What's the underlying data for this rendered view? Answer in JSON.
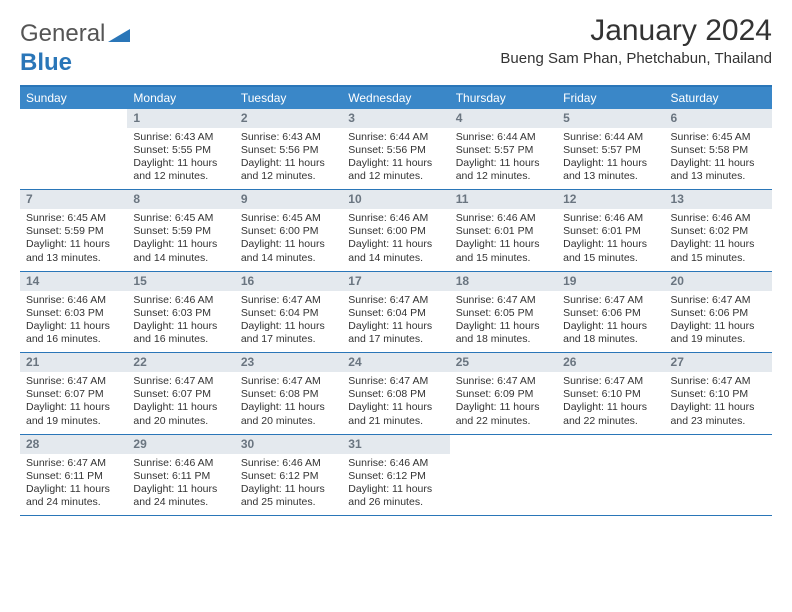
{
  "logo": {
    "gray": "General",
    "blue": "Blue",
    "shape_color": "#2a76b8"
  },
  "title": "January 2024",
  "location": "Bueng Sam Phan, Phetchabun, Thailand",
  "colors": {
    "header_bg": "#3a87c8",
    "header_text": "#ffffff",
    "border_blue": "#2a76b8",
    "daynum_bg": "#e4e9ee",
    "daynum_text": "#6a7580",
    "body_text": "#333333"
  },
  "weekdays": [
    "Sunday",
    "Monday",
    "Tuesday",
    "Wednesday",
    "Thursday",
    "Friday",
    "Saturday"
  ],
  "weeks": [
    [
      null,
      {
        "n": "1",
        "sr": "Sunrise: 6:43 AM",
        "ss": "Sunset: 5:55 PM",
        "d1": "Daylight: 11 hours",
        "d2": "and 12 minutes."
      },
      {
        "n": "2",
        "sr": "Sunrise: 6:43 AM",
        "ss": "Sunset: 5:56 PM",
        "d1": "Daylight: 11 hours",
        "d2": "and 12 minutes."
      },
      {
        "n": "3",
        "sr": "Sunrise: 6:44 AM",
        "ss": "Sunset: 5:56 PM",
        "d1": "Daylight: 11 hours",
        "d2": "and 12 minutes."
      },
      {
        "n": "4",
        "sr": "Sunrise: 6:44 AM",
        "ss": "Sunset: 5:57 PM",
        "d1": "Daylight: 11 hours",
        "d2": "and 12 minutes."
      },
      {
        "n": "5",
        "sr": "Sunrise: 6:44 AM",
        "ss": "Sunset: 5:57 PM",
        "d1": "Daylight: 11 hours",
        "d2": "and 13 minutes."
      },
      {
        "n": "6",
        "sr": "Sunrise: 6:45 AM",
        "ss": "Sunset: 5:58 PM",
        "d1": "Daylight: 11 hours",
        "d2": "and 13 minutes."
      }
    ],
    [
      {
        "n": "7",
        "sr": "Sunrise: 6:45 AM",
        "ss": "Sunset: 5:59 PM",
        "d1": "Daylight: 11 hours",
        "d2": "and 13 minutes."
      },
      {
        "n": "8",
        "sr": "Sunrise: 6:45 AM",
        "ss": "Sunset: 5:59 PM",
        "d1": "Daylight: 11 hours",
        "d2": "and 14 minutes."
      },
      {
        "n": "9",
        "sr": "Sunrise: 6:45 AM",
        "ss": "Sunset: 6:00 PM",
        "d1": "Daylight: 11 hours",
        "d2": "and 14 minutes."
      },
      {
        "n": "10",
        "sr": "Sunrise: 6:46 AM",
        "ss": "Sunset: 6:00 PM",
        "d1": "Daylight: 11 hours",
        "d2": "and 14 minutes."
      },
      {
        "n": "11",
        "sr": "Sunrise: 6:46 AM",
        "ss": "Sunset: 6:01 PM",
        "d1": "Daylight: 11 hours",
        "d2": "and 15 minutes."
      },
      {
        "n": "12",
        "sr": "Sunrise: 6:46 AM",
        "ss": "Sunset: 6:01 PM",
        "d1": "Daylight: 11 hours",
        "d2": "and 15 minutes."
      },
      {
        "n": "13",
        "sr": "Sunrise: 6:46 AM",
        "ss": "Sunset: 6:02 PM",
        "d1": "Daylight: 11 hours",
        "d2": "and 15 minutes."
      }
    ],
    [
      {
        "n": "14",
        "sr": "Sunrise: 6:46 AM",
        "ss": "Sunset: 6:03 PM",
        "d1": "Daylight: 11 hours",
        "d2": "and 16 minutes."
      },
      {
        "n": "15",
        "sr": "Sunrise: 6:46 AM",
        "ss": "Sunset: 6:03 PM",
        "d1": "Daylight: 11 hours",
        "d2": "and 16 minutes."
      },
      {
        "n": "16",
        "sr": "Sunrise: 6:47 AM",
        "ss": "Sunset: 6:04 PM",
        "d1": "Daylight: 11 hours",
        "d2": "and 17 minutes."
      },
      {
        "n": "17",
        "sr": "Sunrise: 6:47 AM",
        "ss": "Sunset: 6:04 PM",
        "d1": "Daylight: 11 hours",
        "d2": "and 17 minutes."
      },
      {
        "n": "18",
        "sr": "Sunrise: 6:47 AM",
        "ss": "Sunset: 6:05 PM",
        "d1": "Daylight: 11 hours",
        "d2": "and 18 minutes."
      },
      {
        "n": "19",
        "sr": "Sunrise: 6:47 AM",
        "ss": "Sunset: 6:06 PM",
        "d1": "Daylight: 11 hours",
        "d2": "and 18 minutes."
      },
      {
        "n": "20",
        "sr": "Sunrise: 6:47 AM",
        "ss": "Sunset: 6:06 PM",
        "d1": "Daylight: 11 hours",
        "d2": "and 19 minutes."
      }
    ],
    [
      {
        "n": "21",
        "sr": "Sunrise: 6:47 AM",
        "ss": "Sunset: 6:07 PM",
        "d1": "Daylight: 11 hours",
        "d2": "and 19 minutes."
      },
      {
        "n": "22",
        "sr": "Sunrise: 6:47 AM",
        "ss": "Sunset: 6:07 PM",
        "d1": "Daylight: 11 hours",
        "d2": "and 20 minutes."
      },
      {
        "n": "23",
        "sr": "Sunrise: 6:47 AM",
        "ss": "Sunset: 6:08 PM",
        "d1": "Daylight: 11 hours",
        "d2": "and 20 minutes."
      },
      {
        "n": "24",
        "sr": "Sunrise: 6:47 AM",
        "ss": "Sunset: 6:08 PM",
        "d1": "Daylight: 11 hours",
        "d2": "and 21 minutes."
      },
      {
        "n": "25",
        "sr": "Sunrise: 6:47 AM",
        "ss": "Sunset: 6:09 PM",
        "d1": "Daylight: 11 hours",
        "d2": "and 22 minutes."
      },
      {
        "n": "26",
        "sr": "Sunrise: 6:47 AM",
        "ss": "Sunset: 6:10 PM",
        "d1": "Daylight: 11 hours",
        "d2": "and 22 minutes."
      },
      {
        "n": "27",
        "sr": "Sunrise: 6:47 AM",
        "ss": "Sunset: 6:10 PM",
        "d1": "Daylight: 11 hours",
        "d2": "and 23 minutes."
      }
    ],
    [
      {
        "n": "28",
        "sr": "Sunrise: 6:47 AM",
        "ss": "Sunset: 6:11 PM",
        "d1": "Daylight: 11 hours",
        "d2": "and 24 minutes."
      },
      {
        "n": "29",
        "sr": "Sunrise: 6:46 AM",
        "ss": "Sunset: 6:11 PM",
        "d1": "Daylight: 11 hours",
        "d2": "and 24 minutes."
      },
      {
        "n": "30",
        "sr": "Sunrise: 6:46 AM",
        "ss": "Sunset: 6:12 PM",
        "d1": "Daylight: 11 hours",
        "d2": "and 25 minutes."
      },
      {
        "n": "31",
        "sr": "Sunrise: 6:46 AM",
        "ss": "Sunset: 6:12 PM",
        "d1": "Daylight: 11 hours",
        "d2": "and 26 minutes."
      },
      null,
      null,
      null
    ]
  ]
}
